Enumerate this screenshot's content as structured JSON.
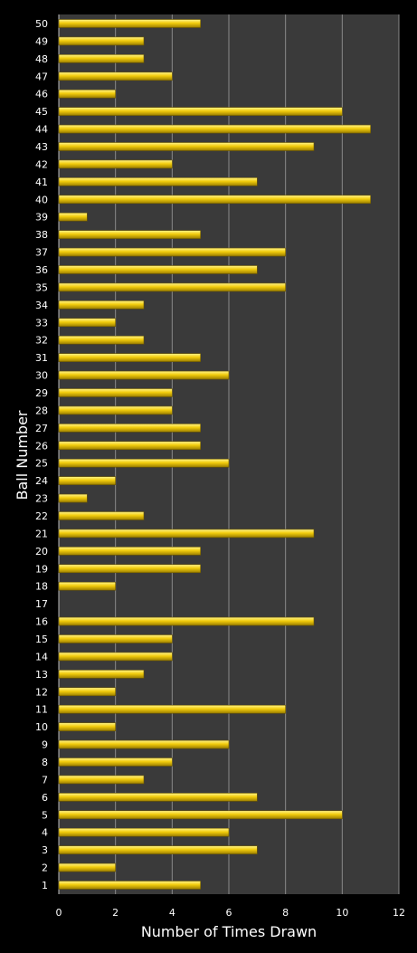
{
  "chart_data": {
    "type": "bar",
    "orientation": "horizontal",
    "xlabel": "Number of Times Drawn",
    "ylabel": "Ball Number",
    "xlim": [
      0,
      12
    ],
    "x_ticks": [
      0,
      2,
      4,
      6,
      8,
      10,
      12
    ],
    "grid": "vertical",
    "colors": {
      "background": "#000000",
      "plot_area": "#3a3a3a",
      "bar": "#f2cc0c",
      "grid": "#8a8a8a",
      "text": "#ffffff"
    },
    "categories": [
      "1",
      "2",
      "3",
      "4",
      "5",
      "6",
      "7",
      "8",
      "9",
      "10",
      "11",
      "12",
      "13",
      "14",
      "15",
      "16",
      "17",
      "18",
      "19",
      "20",
      "21",
      "22",
      "23",
      "24",
      "25",
      "26",
      "27",
      "28",
      "29",
      "30",
      "31",
      "32",
      "33",
      "34",
      "35",
      "36",
      "37",
      "38",
      "39",
      "40",
      "41",
      "42",
      "43",
      "44",
      "45",
      "46",
      "47",
      "48",
      "49",
      "50"
    ],
    "values": [
      5,
      2,
      7,
      6,
      10,
      7,
      3,
      4,
      6,
      2,
      8,
      2,
      3,
      4,
      4,
      9,
      0,
      2,
      5,
      5,
      9,
      3,
      1,
      2,
      6,
      5,
      5,
      4,
      4,
      6,
      5,
      3,
      2,
      3,
      8,
      7,
      8,
      5,
      1,
      11,
      7,
      4,
      9,
      11,
      10,
      2,
      4,
      3,
      3,
      5
    ]
  }
}
